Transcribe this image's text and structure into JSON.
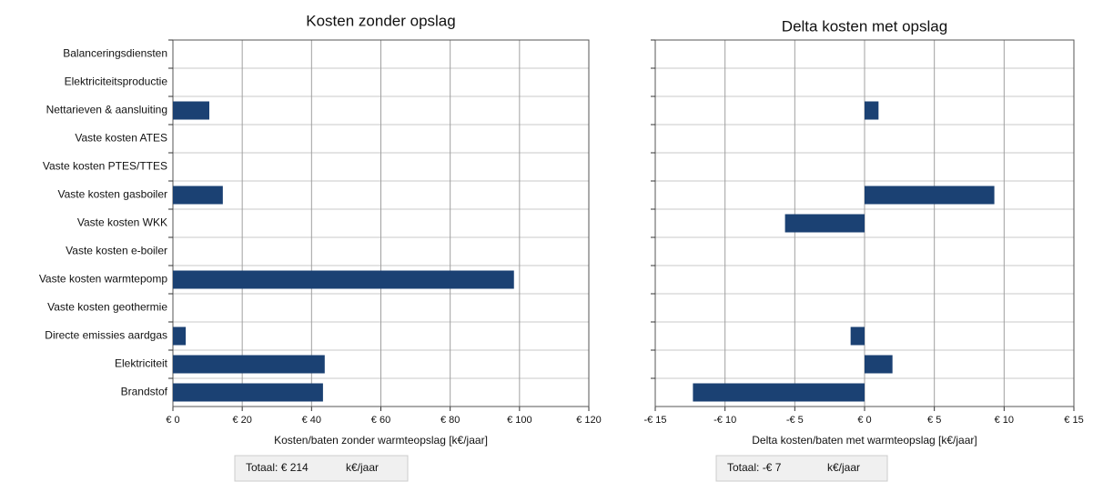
{
  "chart_data": [
    {
      "type": "bar",
      "orientation": "horizontal",
      "title": "Kosten zonder opslag",
      "x_label": "Kosten/baten zonder warmteopslag [k€/jaar]",
      "total": "Totaal: € 214",
      "total_unit": "k€/jaar",
      "categories": [
        "Balanceringsdiensten",
        "Elektriciteitsproductie",
        "Nettarieven & aansluiting",
        "Vaste kosten ATES",
        "Vaste kosten PTES/TTES",
        "Vaste kosten gasboiler",
        "Vaste kosten WKK",
        "Vaste kosten e-boiler",
        "Vaste kosten warmtepomp",
        "Vaste kosten geothermie",
        "Directe emissies aardgas",
        "Elektriciteit",
        "Brandstof"
      ],
      "values": [
        0,
        0,
        10.5,
        0,
        0,
        14.4,
        0,
        0,
        98.4,
        0,
        3.7,
        43.8,
        43.3
      ],
      "color": "#1b4173",
      "xlim": [
        0,
        120
      ],
      "xticks": [
        {
          "value": 0,
          "label": "€ 0"
        },
        {
          "value": 20,
          "label": "€ 20"
        },
        {
          "value": 40,
          "label": "€ 40"
        },
        {
          "value": 60,
          "label": "€ 60"
        },
        {
          "value": 80,
          "label": "€ 80"
        },
        {
          "value": 100,
          "label": "€ 100"
        },
        {
          "value": 120,
          "label": "€ 120"
        }
      ],
      "grid": true
    },
    {
      "type": "bar",
      "orientation": "horizontal",
      "title": "Delta kosten met opslag",
      "x_label": "Delta kosten/baten met warmteopslag [k€/jaar]",
      "total": "Totaal: -€ 7",
      "total_unit": "k€/jaar",
      "categories": [
        null,
        null,
        null,
        null,
        null,
        null,
        null,
        null,
        null,
        null,
        null,
        null,
        null
      ],
      "values": [
        0,
        0,
        1.0,
        0,
        0,
        9.3,
        -5.7,
        0,
        0,
        0,
        -1.0,
        2.0,
        -12.3
      ],
      "color": "#1b4173",
      "xlim": [
        -15,
        15
      ],
      "xticks": [
        {
          "value": -15,
          "label": "-€ 15"
        },
        {
          "value": -10,
          "label": "-€ 10"
        },
        {
          "value": -5,
          "label": "-€ 5"
        },
        {
          "value": 0,
          "label": "€ 0"
        },
        {
          "value": 5,
          "label": "€ 5"
        },
        {
          "value": 10,
          "label": "€ 10"
        },
        {
          "value": 15,
          "label": "€ 15"
        }
      ],
      "grid": true
    }
  ]
}
